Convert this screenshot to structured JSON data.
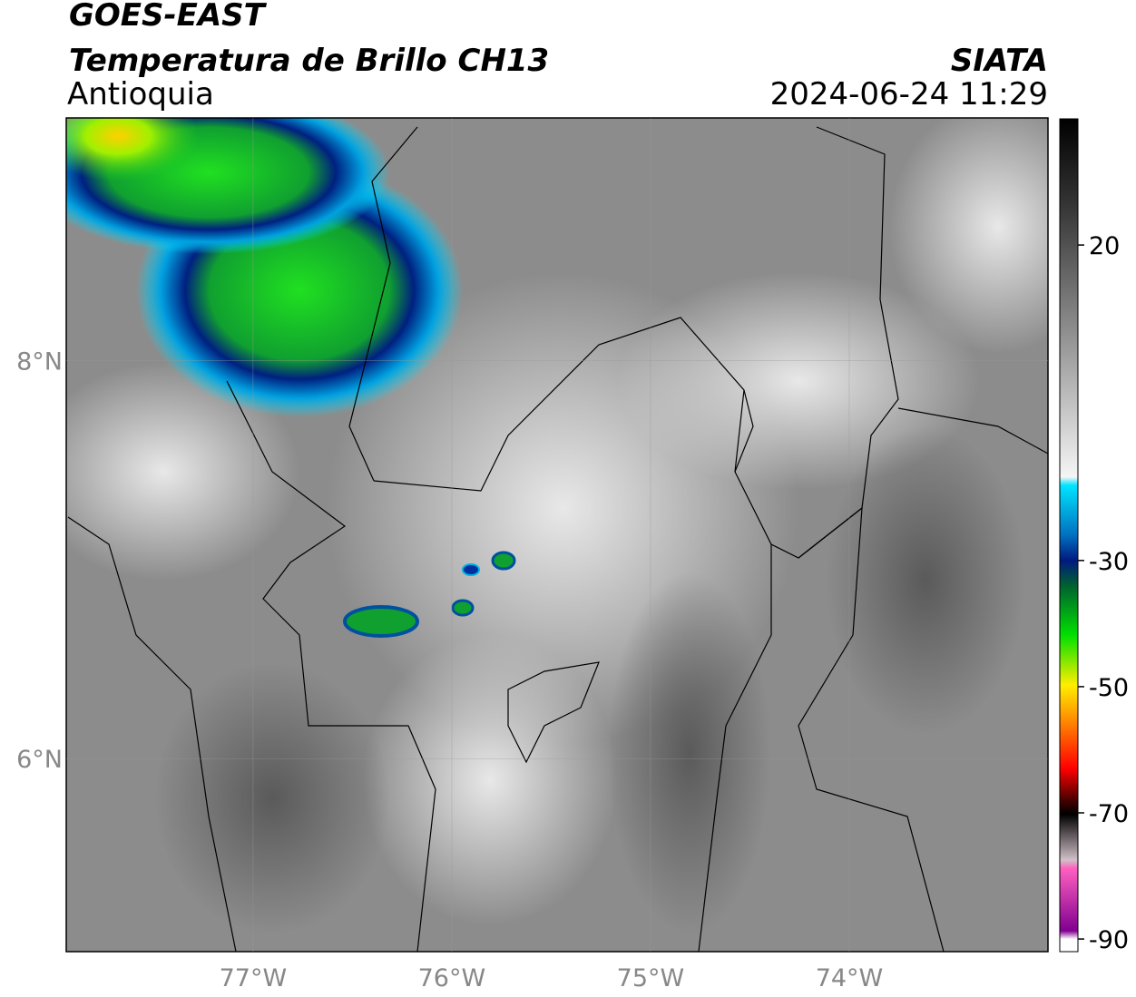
{
  "header": {
    "title": "GOES-EAST",
    "subtitle": "Temperatura de Brillo CH13",
    "region": "Antioquia",
    "source": "SIATA",
    "timestamp": "2024-06-24 11:29"
  },
  "map": {
    "xlim": [
      -77.94,
      -73.0
    ],
    "ylim": [
      5.03,
      9.22
    ],
    "xticks": [
      {
        "value": -77,
        "label": "77°W"
      },
      {
        "value": -76,
        "label": "76°W"
      },
      {
        "value": -75,
        "label": "75°W"
      },
      {
        "value": -74,
        "label": "74°W"
      }
    ],
    "yticks": [
      {
        "value": 8,
        "label": "8°N"
      },
      {
        "value": 6,
        "label": "6°N"
      }
    ],
    "grid": true
  },
  "colorbar": {
    "lim": [
      -92,
      40
    ],
    "ticks": [
      20,
      -30,
      -50,
      -70,
      -90
    ]
  }
}
